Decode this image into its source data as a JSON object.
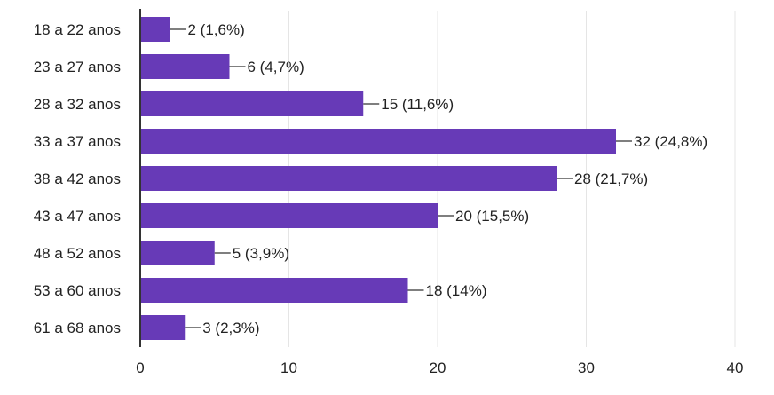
{
  "chart_data": {
    "type": "bar",
    "orientation": "horizontal",
    "categories": [
      "18 a 22 anos",
      "23 a 27 anos",
      "28 a 32 anos",
      "33 a 37 anos",
      "38 a 42 anos",
      "43 a 47 anos",
      "48 a 52 anos",
      "53 a 60 anos",
      "61 a 68 anos"
    ],
    "values": [
      2,
      6,
      15,
      32,
      28,
      20,
      5,
      18,
      3
    ],
    "data_labels": [
      "2 (1,6%)",
      "6 (4,7%)",
      "15 (11,6%)",
      "32 (24,8%)",
      "28 (21,7%)",
      "20 (15,5%)",
      "5 (3,9%)",
      "18 (14%)",
      "3 (2,3%)"
    ],
    "title": "",
    "xlabel": "",
    "ylabel": "",
    "xlim": [
      0,
      40
    ],
    "x_ticks": [
      0,
      10,
      20,
      30,
      40
    ],
    "grid": true,
    "legend": "none",
    "bar_color": "#673ab7",
    "grid_color": "#e5e5e5",
    "axis_color": "#333333"
  }
}
